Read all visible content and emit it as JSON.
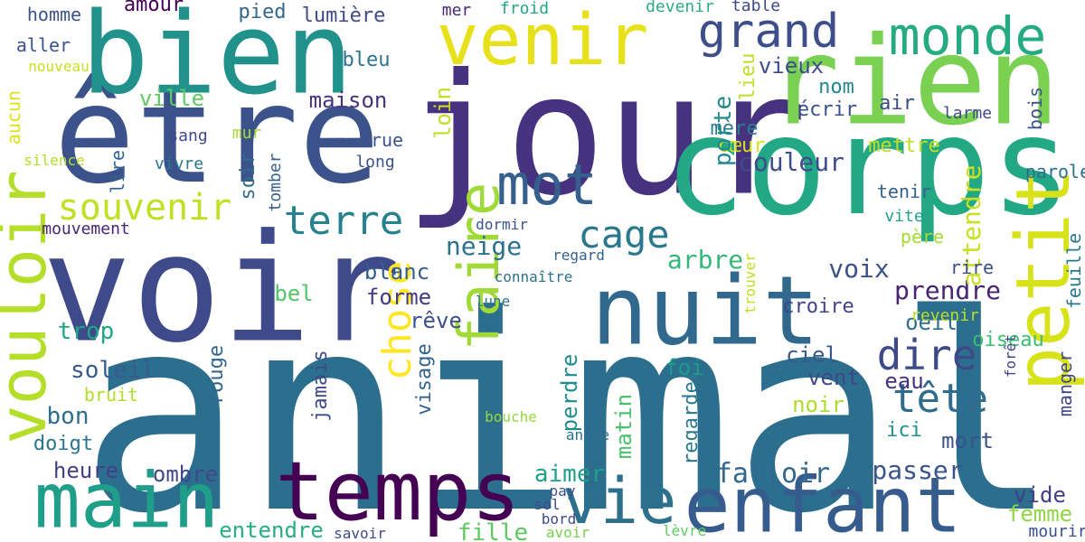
{
  "words": [
    {
      "text": "animal",
      "color": "#2c6e8e"
    },
    {
      "text": "jour",
      "color": "#46327e"
    },
    {
      "text": "corps",
      "color": "#22a884"
    },
    {
      "text": "voir",
      "color": "#3e4a89"
    },
    {
      "text": "être",
      "color": "#3b528b"
    },
    {
      "text": "rien",
      "color": "#7ad151"
    },
    {
      "text": "bien",
      "color": "#21918c"
    },
    {
      "text": "nuit",
      "color": "#31688e"
    },
    {
      "text": "temps",
      "color": "#440154"
    },
    {
      "text": "enfant",
      "color": "#365c8d"
    },
    {
      "text": "main",
      "color": "#1f9e89"
    },
    {
      "text": "venir",
      "color": "#e6e11a"
    },
    {
      "text": "monde",
      "color": "#25ab82"
    },
    {
      "text": "petit",
      "color": "#d8e219"
    },
    {
      "text": "vouloir",
      "color": "#b5de2b"
    },
    {
      "text": "vie",
      "color": "#2d708e"
    },
    {
      "text": "mot",
      "color": "#355f8d"
    },
    {
      "text": "faire",
      "color": "#a0da39"
    },
    {
      "text": "grand",
      "color": "#3d4e8a"
    },
    {
      "text": "terre",
      "color": "#26828e"
    },
    {
      "text": "souvenir",
      "color": "#c2df23"
    },
    {
      "text": "cage",
      "color": "#2a788e"
    },
    {
      "text": "chose",
      "color": "#fde725"
    },
    {
      "text": "dire",
      "color": "#3e4989"
    },
    {
      "text": "tête",
      "color": "#2f6c8e"
    },
    {
      "text": "falloir",
      "color": "#31688e"
    },
    {
      "text": "passer",
      "color": "#3a548c"
    },
    {
      "text": "voix",
      "color": "#3b528b"
    },
    {
      "text": "prendre",
      "color": "#482475"
    },
    {
      "text": "neige",
      "color": "#2c718e"
    },
    {
      "text": "arbre",
      "color": "#35b779"
    },
    {
      "text": "couleur",
      "color": "#3e4c8a"
    },
    {
      "text": "attendre",
      "color": "#c8e020"
    },
    {
      "text": "aimer",
      "color": "#1fa187"
    },
    {
      "text": "fille",
      "color": "#5ec962"
    },
    {
      "text": "entendre",
      "color": "#26ad81"
    },
    {
      "text": "ombre",
      "color": "#3f4889"
    },
    {
      "text": "heure",
      "color": "#424086"
    },
    {
      "text": "matin",
      "color": "#4ac16d"
    },
    {
      "text": "perdre",
      "color": "#228c8d"
    },
    {
      "text": "visage",
      "color": "#33638d"
    },
    {
      "text": "jamais",
      "color": "#3e4a89"
    },
    {
      "text": "regarder",
      "color": "#29798e"
    },
    {
      "text": "rouge",
      "color": "#32658e"
    },
    {
      "text": "soleil",
      "color": "#375b8d"
    },
    {
      "text": "trop",
      "color": "#21a685"
    },
    {
      "text": "bon",
      "color": "#2e6f8e"
    },
    {
      "text": "doigt",
      "color": "#2a768e"
    },
    {
      "text": "bruit",
      "color": "#b2dd2d"
    },
    {
      "text": "forme",
      "color": "#443a83"
    },
    {
      "text": "bel",
      "color": "#52c569"
    },
    {
      "text": "blanc",
      "color": "#355e8d"
    },
    {
      "text": "rêve",
      "color": "#3c4f8a"
    },
    {
      "text": "vent",
      "color": "#3f4788"
    },
    {
      "text": "eau",
      "color": "#46337e"
    },
    {
      "text": "noir",
      "color": "#addc30"
    },
    {
      "text": "ici",
      "color": "#20928c"
    },
    {
      "text": "mort",
      "color": "#3a538b"
    },
    {
      "text": "foi",
      "color": "#1e9c89"
    },
    {
      "text": "ciel",
      "color": "#38598c"
    },
    {
      "text": "oeil",
      "color": "#2e6e8e"
    },
    {
      "text": "croire",
      "color": "#414487"
    },
    {
      "text": "revenir",
      "color": "#bade28"
    },
    {
      "text": "oiseau",
      "color": "#3dbc74"
    },
    {
      "text": "mettre",
      "color": "#bddf26"
    },
    {
      "text": "mère",
      "color": "#287d8e"
    },
    {
      "text": "cœur",
      "color": "#d5e21a"
    },
    {
      "text": "écrir",
      "color": "#3c508b"
    },
    {
      "text": "nom",
      "color": "#24868e"
    },
    {
      "text": "porte",
      "color": "#23888e"
    },
    {
      "text": "lieu",
      "color": "#c0df25"
    },
    {
      "text": "air",
      "color": "#3d4d8a"
    },
    {
      "text": "larme",
      "color": "#3e4a89"
    },
    {
      "text": "bois",
      "color": "#3b528b"
    },
    {
      "text": "parole",
      "color": "#2d708e"
    },
    {
      "text": "tenir",
      "color": "#34608d"
    },
    {
      "text": "vite",
      "color": "#1fa088"
    },
    {
      "text": "père",
      "color": "#a5db36"
    },
    {
      "text": "rire",
      "color": "#3e4c8a"
    },
    {
      "text": "vide",
      "color": "#433e85"
    },
    {
      "text": "femme",
      "color": "#90d743"
    },
    {
      "text": "mourir",
      "color": "#3b518b"
    },
    {
      "text": "manger",
      "color": "#3f4788"
    },
    {
      "text": "feuille",
      "color": "#2a788e"
    },
    {
      "text": "vieux",
      "color": "#3d4d8a"
    },
    {
      "text": "maison",
      "color": "#46327e"
    },
    {
      "text": "ville",
      "color": "#5ec962"
    },
    {
      "text": "bleu",
      "color": "#2c738e"
    },
    {
      "text": "loin",
      "color": "#c2df23"
    },
    {
      "text": "aller",
      "color": "#3a538b"
    },
    {
      "text": "homme",
      "color": "#3b518b"
    },
    {
      "text": "pied",
      "color": "#31688e"
    },
    {
      "text": "lumière",
      "color": "#3e4989"
    },
    {
      "text": "amour",
      "color": "#440154"
    },
    {
      "text": "mer",
      "color": "#482878"
    },
    {
      "text": "froid",
      "color": "#22a884"
    },
    {
      "text": "devenir",
      "color": "#29af7f"
    },
    {
      "text": "table",
      "color": "#3e4a89"
    },
    {
      "text": "aucun",
      "color": "#dde318"
    },
    {
      "text": "silence",
      "color": "#b5de2b"
    },
    {
      "text": "sang",
      "color": "#3f4788"
    },
    {
      "text": "vivre",
      "color": "#2a768e"
    },
    {
      "text": "lire",
      "color": "#32658e"
    },
    {
      "text": "soir",
      "color": "#2e6f8e"
    },
    {
      "text": "mur",
      "color": "#a8db34"
    },
    {
      "text": "rue",
      "color": "#3a548c"
    },
    {
      "text": "long",
      "color": "#3b528b"
    },
    {
      "text": "tomber",
      "color": "#355f8d"
    },
    {
      "text": "mouvement",
      "color": "#482475"
    },
    {
      "text": "nouveau",
      "color": "#c8e020"
    },
    {
      "text": "année",
      "color": "#2d708e"
    },
    {
      "text": "bouche",
      "color": "#97d83f"
    },
    {
      "text": "sol",
      "color": "#3e4a89"
    },
    {
      "text": "pay",
      "color": "#3b528b"
    },
    {
      "text": "bord",
      "color": "#3e4989"
    },
    {
      "text": "avoir",
      "color": "#7ad151"
    },
    {
      "text": "lèvre",
      "color": "#5ec962"
    },
    {
      "text": "savoir",
      "color": "#3e4c8a"
    },
    {
      "text": "lune",
      "color": "#2c718e"
    },
    {
      "text": "connaître",
      "color": "#2d708e"
    },
    {
      "text": "regard",
      "color": "#33638d"
    },
    {
      "text": "dormir",
      "color": "#3a538b"
    },
    {
      "text": "trouver",
      "color": "#c2df23"
    },
    {
      "text": "forêt",
      "color": "#3f4788"
    },
    {
      "text": "manger",
      "color": "#3f4788"
    }
  ]
}
